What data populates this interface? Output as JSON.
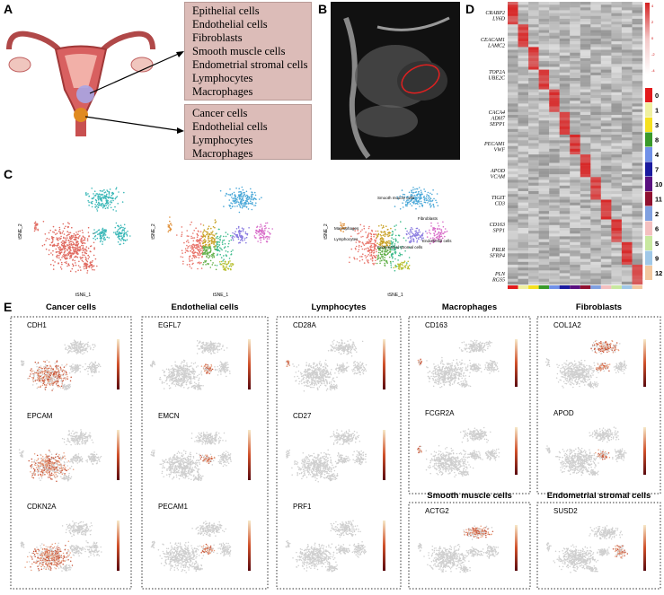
{
  "panel_letters": [
    "A",
    "B",
    "C",
    "D",
    "E"
  ],
  "panel_a": {
    "normal_cells": [
      "Epithelial cells",
      "Endothelial cells",
      "Fibroblasts",
      "Smooth muscle cells",
      "Endometrial stromal cells",
      "Lymphocytes",
      "Macrophages"
    ],
    "tumor_cells": [
      "Cancer cells",
      "Endothelial cells",
      "Lymphocytes",
      "Macrophages"
    ]
  },
  "panel_c": {
    "x_label": "tSNE_1",
    "y_label": "tSNE_2",
    "cell_types": [
      "Macrophages",
      "Lymphocytes",
      "Smooth muscle cells",
      "Fibroblasts",
      "Endothelial cells",
      "Endometrial stromal cells"
    ]
  },
  "panel_d": {
    "genes": [
      "CRABP2\nLY6D",
      "CEACAM1\nLAMC2",
      "TOP2A\nUBE2C",
      "CACA4\nADH7\nSEPP1",
      "PECAM1\nVWF",
      "APOD\nVCAM",
      "TIGIT\nCD3",
      "CD163\nSPP1",
      "PRLR\nSFRP4",
      "PLN\nRGS5"
    ],
    "scale_ticks": [
      4,
      2,
      0,
      -2,
      -4
    ],
    "clusters": [
      0,
      1,
      3,
      8,
      4,
      7,
      10,
      11,
      2,
      6,
      5,
      9,
      12
    ]
  },
  "panel_e": {
    "groups": [
      {
        "title": "Cancer cells",
        "genes": [
          "CDH1",
          "EPCAM",
          "CDKN2A"
        ]
      },
      {
        "title": "Endothelial cells",
        "genes": [
          "EGFL7",
          "EMCN",
          "PECAM1"
        ]
      },
      {
        "title": "Lymphocytes",
        "genes": [
          "CD28A",
          "CD27",
          "PRF1"
        ]
      },
      {
        "title": "Macrophages",
        "genes": [
          "CD163",
          "FCGR2A"
        ]
      },
      {
        "title": "Fibroblasts",
        "genes": [
          "COL1A2",
          "APOD"
        ]
      },
      {
        "title": "Smooth muscle cells",
        "genes": [
          "ACTG2"
        ]
      },
      {
        "title": "Endometrial stromal cells",
        "genes": [
          "SUSD2"
        ]
      }
    ]
  }
}
